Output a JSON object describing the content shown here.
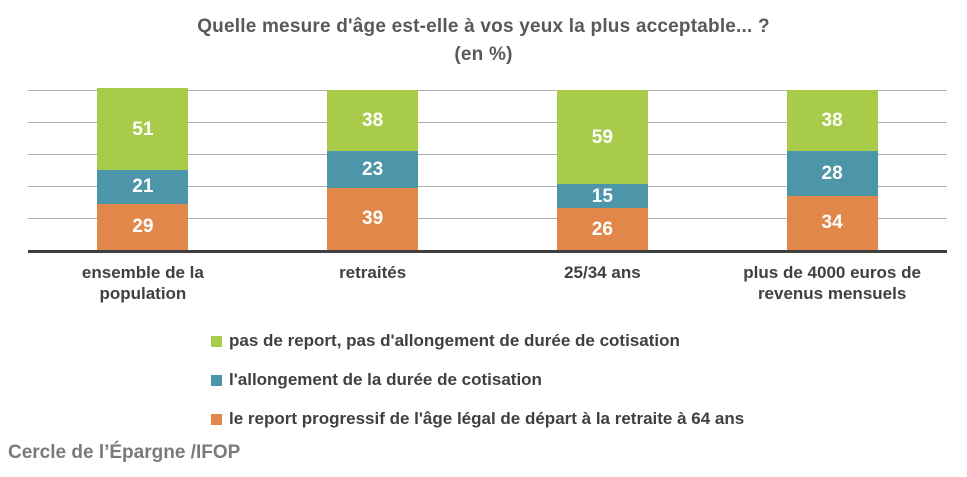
{
  "title": {
    "line1": "Quelle mesure d'âge est-elle à vos yeux la plus acceptable... ?",
    "line2": "(en %)"
  },
  "source": "Cercle de l’Épargne /IFOP",
  "colors": {
    "green": "#a8cc4a",
    "blue": "#4d95a8",
    "orange": "#e2874a",
    "gridline": "#aeaeae",
    "axis": "#3f3f3f",
    "title_text": "#595959",
    "label_text": "#404040",
    "value_text": "#ffffff",
    "source_text": "#7a7a7a"
  },
  "chart_data": {
    "type": "bar",
    "stacked": true,
    "title": "Quelle mesure d'âge est-elle à vos yeux la plus acceptable... ?",
    "subtitle": "(en %)",
    "categories": [
      "ensemble de la population",
      "retraités",
      "25/34 ans",
      "plus de 4000 euros de revenus mensuels"
    ],
    "series": [
      {
        "name": "le report progressif de l'âge légal de départ à la retraite à 64 ans",
        "color_key": "orange",
        "values": [
          29,
          39,
          26,
          34
        ]
      },
      {
        "name": "l'allongement de la durée de cotisation",
        "color_key": "blue",
        "values": [
          21,
          23,
          15,
          28
        ]
      },
      {
        "name": "pas de report, pas d'allongement de durée de cotisation",
        "color_key": "green",
        "values": [
          51,
          38,
          59,
          38
        ]
      }
    ],
    "ylim": [
      0,
      100
    ],
    "gridline_step": 20,
    "grid": true,
    "legend_position": "bottom",
    "xlabel": "",
    "ylabel": ""
  },
  "legend": {
    "items": [
      {
        "label": "pas de report, pas d'allongement de durée de cotisation",
        "color_key": "green"
      },
      {
        "label": "l'allongement de la durée de cotisation",
        "color_key": "blue"
      },
      {
        "label": "le report progressif de l'âge légal de départ à la retraite à 64 ans",
        "color_key": "orange"
      }
    ]
  }
}
